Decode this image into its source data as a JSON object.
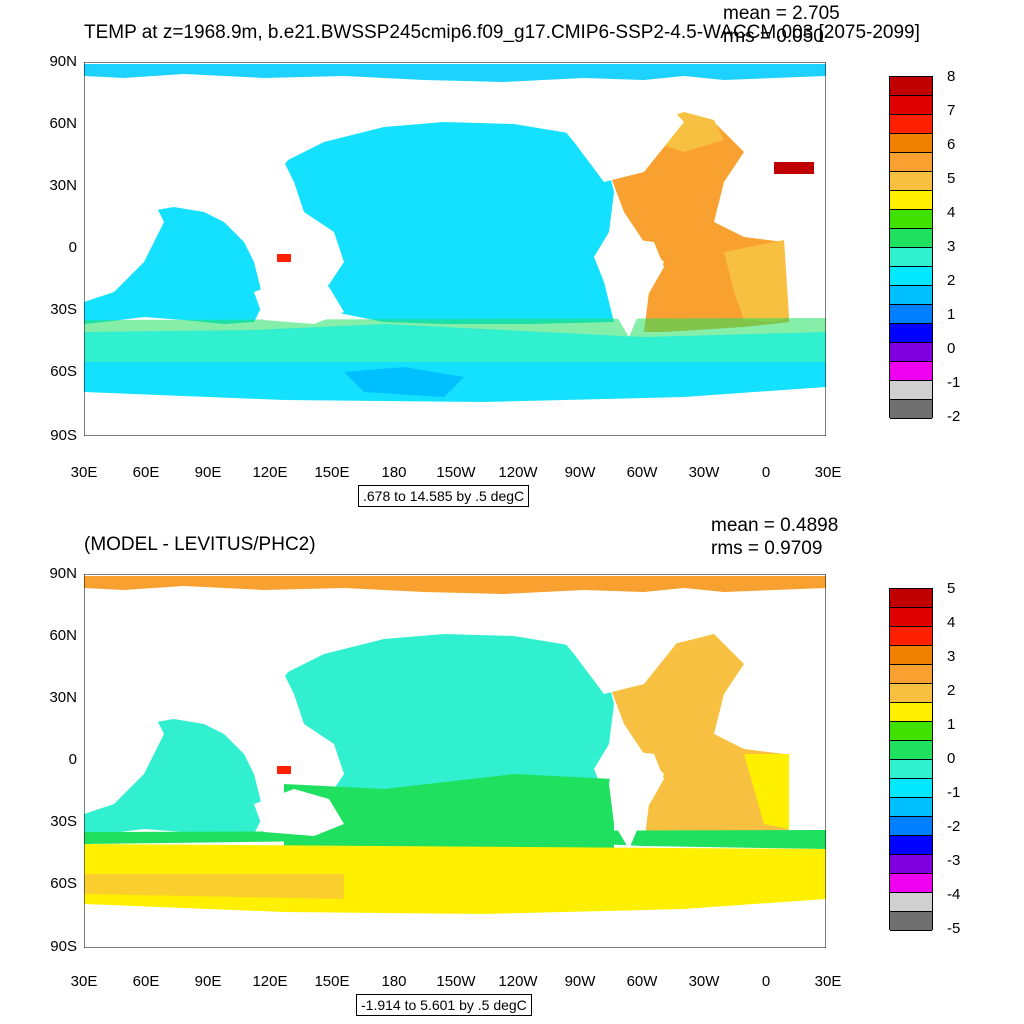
{
  "panel1": {
    "title": "TEMP at z=1968.9m, b.e21.BWSSP245cmip6.f09_g17.CMIP6-SSP2-4.5-WACCM.003 [2075-2099]",
    "mean": "mean = 2.705",
    "rms": "rms = 0.050",
    "range": ".678 to 14.585 by .5 degC",
    "colorbar_labels": [
      "8",
      "7",
      "6",
      "5",
      "4",
      "3",
      "2",
      "1",
      "0",
      "-1",
      "-2"
    ]
  },
  "panel2": {
    "title": "(MODEL - LEVITUS/PHC2)",
    "mean": "mean = 0.4898",
    "rms": "rms = 0.9709",
    "range": "-1.914 to 5.601 by .5 degC",
    "colorbar_labels": [
      "5",
      "4",
      "3",
      "2",
      "1",
      "0",
      "-1",
      "-2",
      "-3",
      "-4",
      "-5"
    ]
  },
  "axes": {
    "lat_ticks": [
      "90N",
      "60N",
      "30N",
      "0",
      "30S",
      "60S",
      "90S"
    ],
    "lon_ticks": [
      "30E",
      "60E",
      "90E",
      "120E",
      "150E",
      "180",
      "150W",
      "120W",
      "90W",
      "60W",
      "30W",
      "0",
      "30E"
    ]
  },
  "colors": {
    "colorbar": [
      "#c00000",
      "#e00000",
      "#ff2000",
      "#f08000",
      "#f8a030",
      "#f8c040",
      "#fff000",
      "#40e000",
      "#20e060",
      "#30f0d0",
      "#00e8ff",
      "#00c0ff",
      "#0080ff",
      "#0000ff",
      "#8000e0",
      "#f000f0",
      "#d0d0d0",
      "#707070"
    ],
    "ocean_panel1": "#14e0ff",
    "ocean_panel2": "#30f0d0"
  }
}
